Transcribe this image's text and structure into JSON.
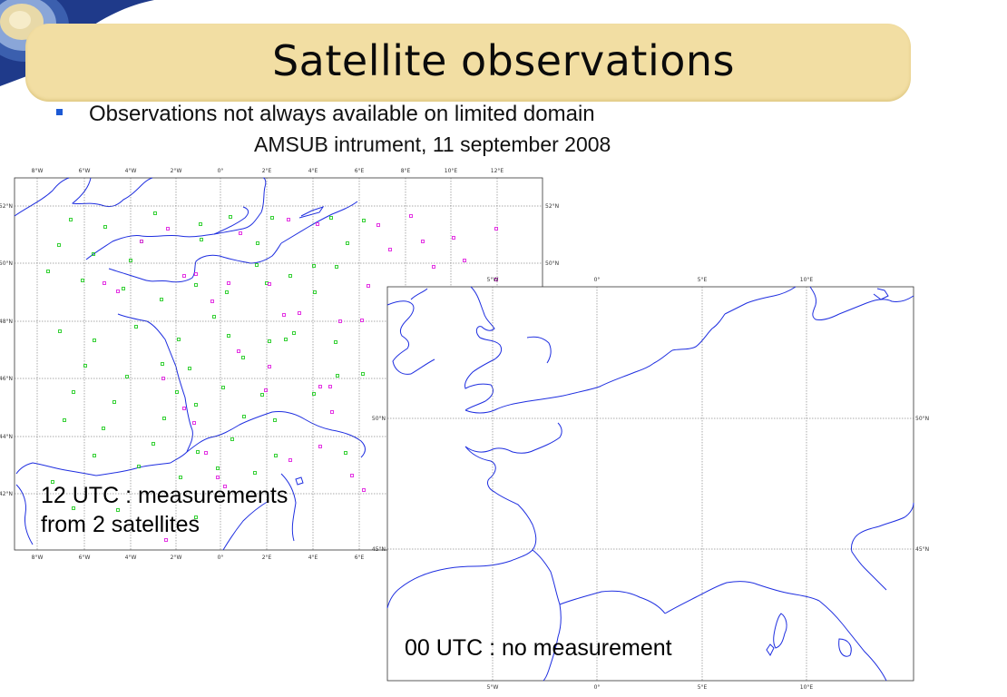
{
  "slide": {
    "title": "Satellite observations",
    "bullet": "Observations not always available on limited domain",
    "subtitle": "AMSUB intrument, 11 september 2008"
  },
  "map_12utc": {
    "caption_line1": "12 UTC : measurements",
    "caption_line2": "from 2 satellites",
    "lon_labels_top": [
      "8°W",
      "6°W",
      "4°W",
      "2°W",
      "0°",
      "2°E",
      "4°E",
      "6°E",
      "8°E",
      "10°E",
      "12°E"
    ],
    "lon_labels_bottom": [
      "8°W",
      "6°W",
      "4°W",
      "2°W",
      "0°",
      "2°E",
      "4°E",
      "6°E"
    ],
    "lat_labels_left": [
      "52°N",
      "50°N",
      "48°N",
      "46°N",
      "44°N",
      "42°N"
    ],
    "lat_labels_right": [
      "52°N",
      "50°N"
    ],
    "satellite_colors": [
      "#22cc22",
      "#e020e0"
    ]
  },
  "map_00utc": {
    "caption": "00 UTC : no measurement",
    "lon_labels_top": [
      "5°W",
      "0°",
      "5°E",
      "10°E"
    ],
    "lon_labels_bottom": [
      "5°W",
      "0°",
      "5°E",
      "10°E"
    ],
    "lat_labels_left": [
      "50°N",
      "45°N"
    ],
    "lat_labels_right": [
      "50°N",
      "45°N"
    ]
  },
  "colors": {
    "title_band": "#f2dea3",
    "coastline": "#1e2ee0",
    "bullet": "#1c59d4"
  }
}
